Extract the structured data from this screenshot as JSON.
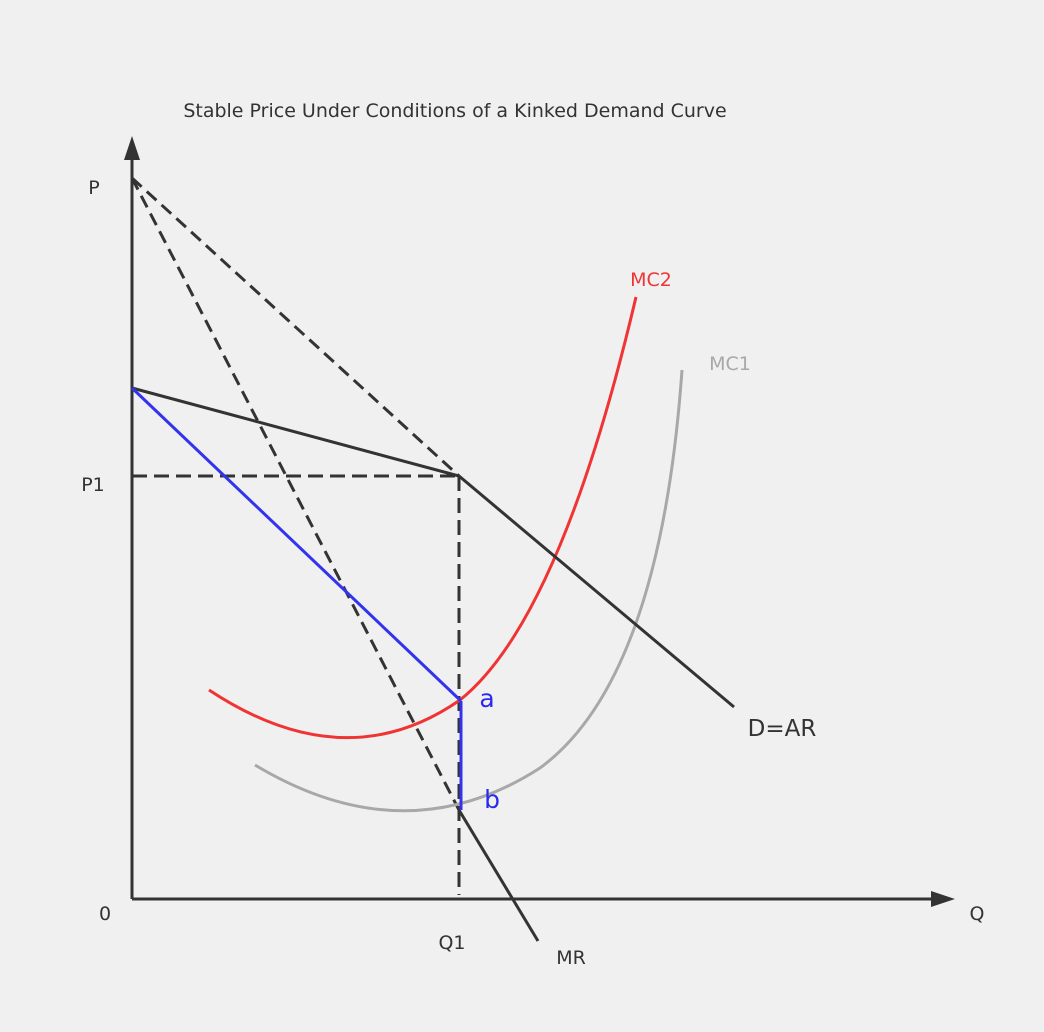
{
  "title": "Stable Price Under Conditions of a Kinked Demand Curve",
  "axes": {
    "y_label": "P",
    "x_label": "Q",
    "origin_label": "0"
  },
  "markers": {
    "price": "P1",
    "quantity": "Q1"
  },
  "curves": {
    "demand": "D=AR",
    "marginal_revenue": "MR",
    "mc1": "MC1",
    "mc2": "MC2"
  },
  "points": {
    "a": "a",
    "b": "b"
  },
  "colors": {
    "background": "#f0f0f0",
    "axis": "#333333",
    "mc2": "#f03434",
    "mc1": "#a8a8a8",
    "mr_gap": "#3333ee",
    "point_labels": "#2a2aee"
  }
}
